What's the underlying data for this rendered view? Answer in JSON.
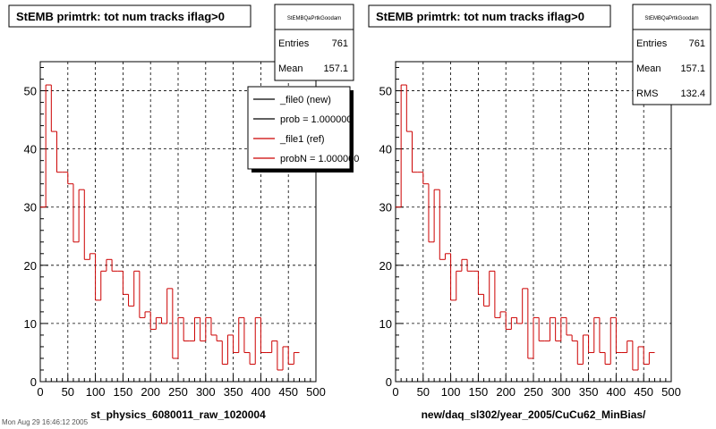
{
  "footer_text": "Mon Aug 29 16:46:12 2005",
  "legend": {
    "entries": [
      {
        "label": "_file0 (new)",
        "color": "#000000"
      },
      {
        "label": "prob = 1.000000",
        "color": "#000000"
      },
      {
        "label": "_file1 (ref)",
        "color": "#cc0000"
      },
      {
        "label": "probN = 1.000000",
        "color": "#cc0000"
      }
    ]
  },
  "chart_data": [
    {
      "type": "histogram",
      "title": "StEMB primtrk: tot num tracks iflag>0",
      "xlabel": "st_physics_6080011_raw_1020004",
      "ylabel": "",
      "xlim": [
        0,
        500
      ],
      "ylim": [
        0,
        55
      ],
      "xticks": [
        "0",
        "50",
        "100",
        "150",
        "200",
        "250",
        "300",
        "350",
        "400",
        "450",
        "500"
      ],
      "yticks": [
        "0",
        "10",
        "20",
        "30",
        "40",
        "50"
      ],
      "grid": true,
      "bin_width": 10,
      "values": [
        30,
        51,
        43,
        36,
        36,
        34,
        24,
        33,
        21,
        22,
        14,
        19,
        21,
        19,
        19,
        15,
        13,
        19,
        11,
        12,
        9,
        11,
        10,
        16,
        4,
        11,
        7,
        7,
        11,
        7,
        11,
        8,
        7,
        3,
        8,
        5,
        11,
        5,
        3,
        11,
        5,
        5,
        7,
        2,
        6,
        3,
        5
      ],
      "color": "#cc0000",
      "stats": {
        "name": "StEMBQaPrtkGoodam",
        "entries_label": "Entries",
        "entries": "761",
        "mean_label": "Mean",
        "mean": "157.1"
      }
    },
    {
      "type": "histogram",
      "title": "StEMB primtrk: tot num tracks iflag>0",
      "xlabel": "new/daq_sl302/year_2005/CuCu62_MinBias/",
      "ylabel": "",
      "xlim": [
        0,
        500
      ],
      "ylim": [
        0,
        55
      ],
      "xticks": [
        "0",
        "50",
        "100",
        "150",
        "200",
        "250",
        "300",
        "350",
        "400",
        "450",
        "500"
      ],
      "yticks": [
        "0",
        "10",
        "20",
        "30",
        "40",
        "50"
      ],
      "grid": true,
      "bin_width": 10,
      "values": [
        30,
        51,
        43,
        36,
        36,
        34,
        24,
        33,
        21,
        22,
        14,
        19,
        21,
        19,
        19,
        15,
        13,
        19,
        11,
        12,
        9,
        11,
        10,
        16,
        4,
        11,
        7,
        7,
        11,
        7,
        11,
        8,
        7,
        3,
        8,
        5,
        11,
        5,
        3,
        11,
        5,
        5,
        7,
        2,
        6,
        3,
        5
      ],
      "color": "#cc0000",
      "stats": {
        "name": "StEMBQaPrtkGoodam",
        "entries_label": "Entries",
        "entries": "761",
        "mean_label": "Mean",
        "mean": "157.1",
        "rms_label": "RMS",
        "rms": "132.4"
      }
    }
  ]
}
